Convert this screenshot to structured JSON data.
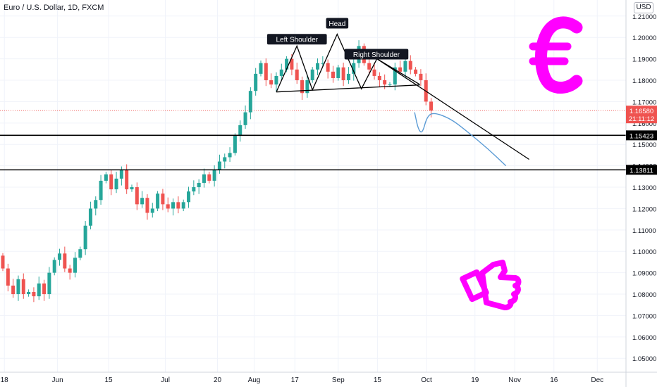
{
  "header": {
    "title": "Euro / U.S. Dollar, 1D, FXCM",
    "currency": "USD"
  },
  "colors": {
    "up": "#26a69a",
    "down": "#ef5350",
    "annotation": "#ff00ff",
    "forecast": "#5b9bd5",
    "lines": "#000000"
  },
  "chart_data": {
    "type": "candlestick",
    "ylim": [
      1.0435,
      1.2175
    ],
    "y_ticks": [
      "1.05000",
      "1.06000",
      "1.07000",
      "1.08000",
      "1.09000",
      "1.10000",
      "1.11000",
      "1.12000",
      "1.13000",
      "1.14000",
      "1.15000",
      "1.16000",
      "1.17000",
      "1.18000",
      "1.19000",
      "1.20000",
      "1.21000"
    ],
    "x_ticks": [
      {
        "label": "18",
        "pos": 0.3
      },
      {
        "label": "Jun",
        "pos": 10.6
      },
      {
        "label": "15",
        "pos": 20.5
      },
      {
        "label": "Jul",
        "pos": 31.5
      },
      {
        "label": "20",
        "pos": 41.6
      },
      {
        "label": "Aug",
        "pos": 48.7
      },
      {
        "label": "17",
        "pos": 56.6
      },
      {
        "label": "Sep",
        "pos": 65.0
      },
      {
        "label": "15",
        "pos": 72.6
      },
      {
        "label": "Oct",
        "pos": 82.1
      },
      {
        "label": "19",
        "pos": 91.5
      },
      {
        "label": "Nov",
        "pos": 99.2
      },
      {
        "label": "16",
        "pos": 106.8
      },
      {
        "label": "Dec",
        "pos": 115.2
      }
    ],
    "closes": [
      1.092,
      1.084,
      1.08,
      1.087,
      1.08,
      1.081,
      1.079,
      1.085,
      1.08,
      1.09,
      1.096,
      1.099,
      1.092,
      1.09,
      1.097,
      1.101,
      1.112,
      1.12,
      1.124,
      1.133,
      1.136,
      1.129,
      1.134,
      1.138,
      1.129,
      1.13,
      1.122,
      1.125,
      1.118,
      1.12,
      1.127,
      1.122,
      1.12,
      1.123,
      1.12,
      1.123,
      1.128,
      1.13,
      1.132,
      1.136,
      1.133,
      1.138,
      1.142,
      1.144,
      1.146,
      1.154,
      1.159,
      1.165,
      1.175,
      1.183,
      1.188,
      1.18,
      1.178,
      1.182,
      1.185,
      1.19,
      1.185,
      1.18,
      1.174,
      1.18,
      1.185,
      1.188,
      1.188,
      1.184,
      1.181,
      1.186,
      1.18,
      1.183,
      1.188,
      1.196,
      1.188,
      1.185,
      1.182,
      1.18,
      1.178,
      1.178,
      1.186,
      1.184,
      1.189,
      1.185,
      1.183,
      1.18,
      1.17,
      1.1658
    ],
    "price_lines": [
      {
        "label": "1.15423",
        "value": 1.15423
      },
      {
        "label": "1.13811",
        "value": 1.13811
      }
    ],
    "last_price": {
      "label": "1.16580",
      "countdown": "21:11:12",
      "value": 1.1658
    },
    "pattern_labels": [
      {
        "text": "Left Shoulder",
        "x": 57.0,
        "y": 1.199
      },
      {
        "text": "Head",
        "x": 64.8,
        "y": 1.2065
      },
      {
        "text": "Right Shoulder",
        "x": 72.4,
        "y": 1.192
      }
    ],
    "pattern_line": [
      [
        53.0,
        1.1745
      ],
      [
        57.0,
        1.196
      ],
      [
        60.0,
        1.1755
      ],
      [
        64.8,
        1.2015
      ],
      [
        69.5,
        1.176
      ],
      [
        72.5,
        1.19
      ],
      [
        80.8,
        1.178
      ]
    ],
    "neckline": [
      [
        53.0,
        1.1745
      ],
      [
        80.8,
        1.1778
      ]
    ],
    "trendline": [
      [
        72.5,
        1.19
      ],
      [
        102.0,
        1.143
      ]
    ],
    "forecast": [
      [
        79.8,
        1.165
      ],
      [
        80.5,
        1.157
      ],
      [
        81.3,
        1.155
      ],
      [
        82.2,
        1.163
      ],
      [
        83.5,
        1.165
      ],
      [
        86.8,
        1.162
      ],
      [
        90.0,
        1.156
      ],
      [
        94.0,
        1.148
      ],
      [
        97.5,
        1.14
      ]
    ]
  }
}
